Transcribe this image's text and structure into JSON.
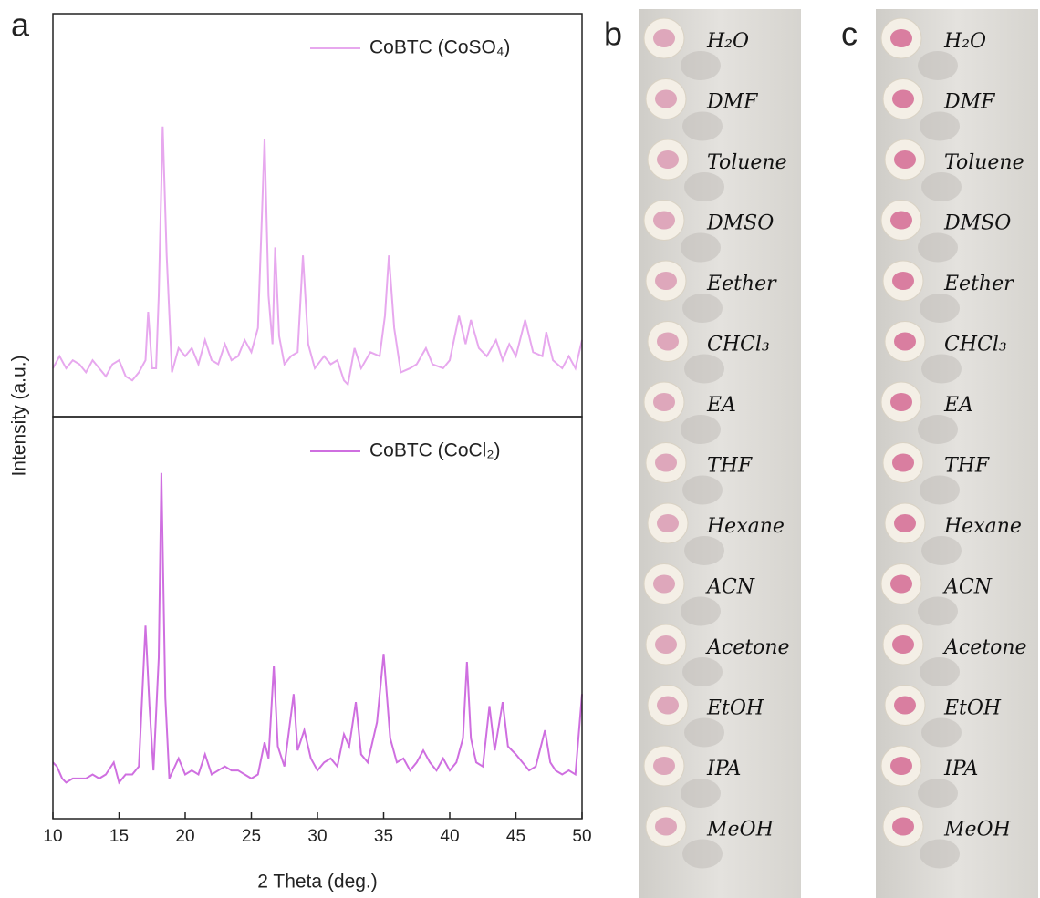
{
  "chart_data": [
    {
      "type": "line",
      "panel": "a",
      "ylabel": "Intensity (a.u.)",
      "xlim": [
        10,
        50
      ],
      "ylim": [
        0,
        100
      ],
      "x": [
        10,
        10.5,
        11,
        11.5,
        12,
        12.5,
        13,
        13.5,
        14,
        14.5,
        15,
        15.5,
        16,
        16.5,
        17,
        17.2,
        17.5,
        17.8,
        18,
        18.3,
        18.6,
        19,
        19.5,
        20,
        20.5,
        21,
        21.5,
        22,
        22.5,
        23,
        23.5,
        24,
        24.5,
        25,
        25.5,
        25.8,
        26,
        26.3,
        26.6,
        26.8,
        27.1,
        27.5,
        28,
        28.5,
        28.9,
        29.3,
        29.8,
        30.5,
        31,
        31.5,
        32,
        32.3,
        32.8,
        33.3,
        34,
        34.7,
        35.1,
        35.4,
        35.8,
        36.3,
        37,
        37.5,
        38.2,
        38.7,
        39.5,
        40,
        40.7,
        41.2,
        41.6,
        42.2,
        42.8,
        43.5,
        44,
        44.5,
        45,
        45.7,
        46.3,
        47,
        47.3,
        47.8,
        48.5,
        49,
        49.5,
        50
      ],
      "series": [
        {
          "name": "CoBTC (CoSO₄)",
          "color": "#e7a8ee",
          "values": [
            12,
            15,
            12,
            14,
            13,
            11,
            14,
            12,
            10,
            13,
            14,
            10,
            9,
            11,
            14,
            26,
            12,
            12,
            30,
            72,
            40,
            11,
            17,
            15,
            17,
            13,
            19,
            14,
            13,
            18,
            14,
            15,
            19,
            16,
            22,
            50,
            69,
            30,
            18,
            42,
            20,
            13,
            15,
            16,
            40,
            18,
            12,
            15,
            13,
            14,
            9,
            8,
            17,
            12,
            16,
            15,
            25,
            40,
            22,
            11,
            12,
            13,
            17,
            13,
            12,
            14,
            25,
            18,
            24,
            17,
            15,
            19,
            14,
            18,
            15,
            24,
            16,
            15,
            21,
            14,
            12,
            15,
            12,
            19
          ]
        }
      ]
    },
    {
      "type": "line",
      "xlabel": "2 Theta (deg.)",
      "xlim": [
        10,
        50
      ],
      "ylim": [
        0,
        100
      ],
      "xticks": [
        10,
        15,
        20,
        25,
        30,
        35,
        40,
        45,
        50
      ],
      "x": [
        10,
        10.3,
        10.7,
        11,
        11.5,
        12,
        12.5,
        13,
        13.5,
        14,
        14.6,
        15,
        15.5,
        16,
        16.5,
        17,
        17.3,
        17.6,
        18,
        18.2,
        18.5,
        18.8,
        19.5,
        20,
        20.5,
        21,
        21.5,
        22,
        22.5,
        23,
        23.5,
        24,
        24.5,
        25,
        25.5,
        26,
        26.3,
        26.7,
        27,
        27.5,
        28.2,
        28.5,
        29,
        29.5,
        30,
        30.5,
        31,
        31.5,
        32,
        32.4,
        32.9,
        33.3,
        33.8,
        34.5,
        35,
        35.5,
        36,
        36.5,
        37,
        37.5,
        38,
        38.5,
        39,
        39.5,
        40,
        40.5,
        41,
        41.3,
        41.6,
        42,
        42.5,
        43,
        43.4,
        44,
        44.4,
        45,
        45.5,
        46,
        46.5,
        47.2,
        47.6,
        48,
        48.5,
        49,
        49.5,
        50
      ],
      "series": [
        {
          "name": "CoBTC (CoCl₂)",
          "color": "#cf6fe0",
          "values": [
            14,
            13,
            10,
            9,
            10,
            10,
            10,
            11,
            10,
            11,
            14,
            9,
            11,
            11,
            13,
            48,
            28,
            12,
            40,
            86,
            30,
            10,
            15,
            11,
            12,
            11,
            16,
            11,
            12,
            13,
            12,
            12,
            11,
            10,
            11,
            19,
            15,
            38,
            18,
            13,
            31,
            17,
            22,
            15,
            12,
            14,
            15,
            13,
            21,
            18,
            29,
            16,
            14,
            24,
            41,
            20,
            14,
            15,
            12,
            14,
            17,
            14,
            12,
            15,
            12,
            14,
            20,
            39,
            20,
            14,
            13,
            28,
            17,
            29,
            18,
            16,
            14,
            12,
            13,
            22,
            14,
            12,
            11,
            12,
            11,
            31
          ]
        }
      ]
    }
  ],
  "photos": [
    {
      "label": "b",
      "solvents": [
        "H₂O",
        "DMF",
        "Toluene",
        "DMSO",
        "Eether",
        "CHCl₃",
        "EA",
        "THF",
        "Hexane",
        "ACN",
        "Acetone",
        "EtOH",
        "IPA",
        "MeOH"
      ]
    },
    {
      "label": "c",
      "solvents": [
        "H₂O",
        "DMF",
        "Toluene",
        "DMSO",
        "Eether",
        "CHCl₃",
        "EA",
        "THF",
        "Hexane",
        "ACN",
        "Acetone",
        "EtOH",
        "IPA",
        "MeOH"
      ]
    }
  ]
}
